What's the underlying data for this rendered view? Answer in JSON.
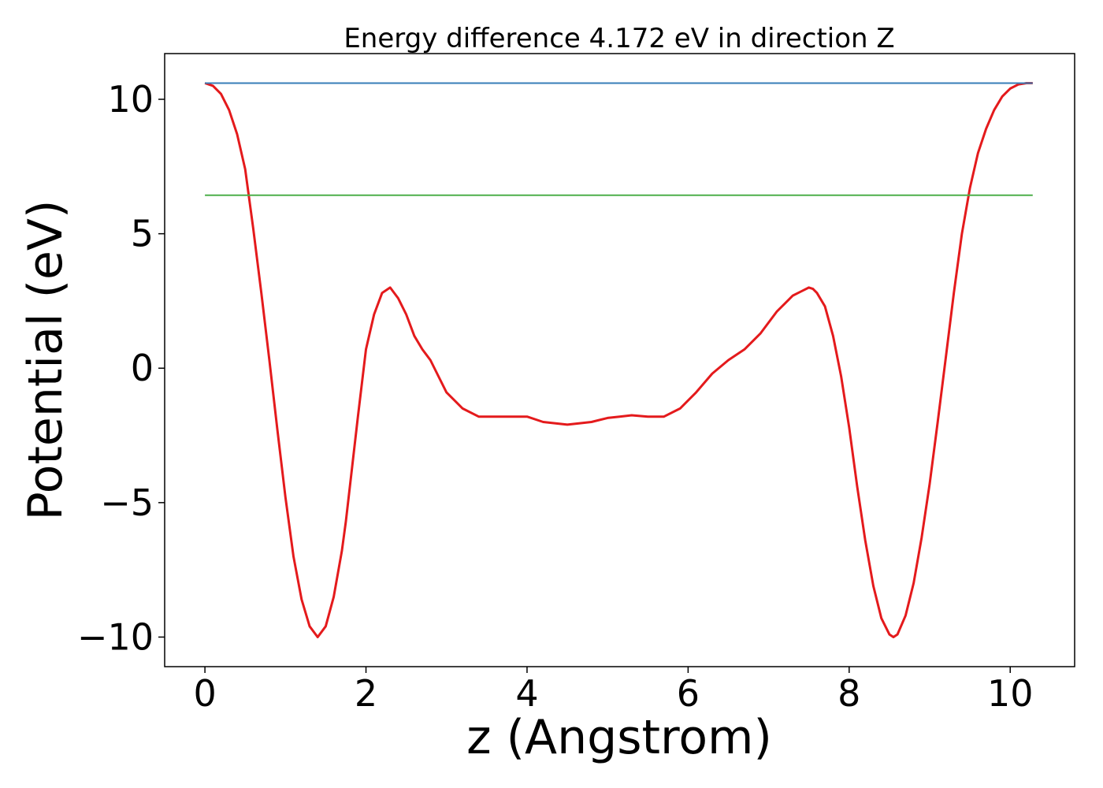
{
  "chart_data": {
    "type": "line",
    "title": "Energy difference 4.172 eV in direction Z",
    "xlabel": "z (Angstrom)",
    "ylabel": "Potential (eV)",
    "xlim": [
      -0.5,
      10.8
    ],
    "ylim": [
      -11.1,
      11.7
    ],
    "xticks": [
      0,
      2,
      4,
      6,
      8,
      10
    ],
    "yticks": [
      -10,
      -5,
      0,
      5,
      10
    ],
    "grid": false,
    "colors": {
      "potential": "#e41a1c",
      "vacuum": "#377eb8",
      "reference": "#4daf4a"
    },
    "series": [
      {
        "style": "curve",
        "color": "#e41a1c",
        "x": [
          0,
          0.1,
          0.2,
          0.3,
          0.4,
          0.5,
          0.6,
          0.7,
          0.8,
          0.9,
          1.0,
          1.1,
          1.2,
          1.3,
          1.4,
          1.5,
          1.6,
          1.7,
          1.75,
          1.8,
          1.9,
          2.0,
          2.1,
          2.2,
          2.3,
          2.4,
          2.5,
          2.6,
          2.7,
          2.75,
          2.8,
          2.9,
          3.0,
          3.2,
          3.4,
          3.6,
          3.8,
          4.0,
          4.2,
          4.5,
          4.8,
          5.0,
          5.15,
          5.3,
          5.5,
          5.7,
          5.9,
          6.1,
          6.3,
          6.5,
          6.7,
          6.9,
          7.1,
          7.3,
          7.5,
          7.55,
          7.6,
          7.7,
          7.8,
          7.9,
          8.0,
          8.1,
          8.2,
          8.3,
          8.4,
          8.5,
          8.55,
          8.6,
          8.7,
          8.8,
          8.9,
          9.0,
          9.1,
          9.2,
          9.3,
          9.4,
          9.5,
          9.6,
          9.7,
          9.8,
          9.9,
          10.0,
          10.1,
          10.2,
          10.28
        ],
        "y": [
          10.6,
          10.5,
          10.2,
          9.6,
          8.7,
          7.4,
          5.2,
          2.8,
          0.3,
          -2.3,
          -4.8,
          -7.0,
          -8.6,
          -9.6,
          -10.0,
          -9.6,
          -8.5,
          -6.8,
          -5.7,
          -4.4,
          -1.8,
          0.7,
          2.0,
          2.8,
          3.0,
          2.6,
          2.0,
          1.2,
          0.7,
          0.5,
          0.3,
          -0.3,
          -0.9,
          -1.5,
          -1.8,
          -1.8,
          -1.8,
          -1.8,
          -2.0,
          -2.1,
          -2.0,
          -1.85,
          -1.8,
          -1.75,
          -1.8,
          -1.8,
          -1.5,
          -0.9,
          -0.2,
          0.3,
          0.7,
          1.3,
          2.1,
          2.7,
          3.0,
          2.95,
          2.8,
          2.3,
          1.2,
          -0.3,
          -2.2,
          -4.4,
          -6.4,
          -8.1,
          -9.3,
          -9.9,
          -10.0,
          -9.9,
          -9.2,
          -8.0,
          -6.3,
          -4.3,
          -2.0,
          0.4,
          2.8,
          5.0,
          6.7,
          8.0,
          8.9,
          9.6,
          10.1,
          10.4,
          10.55,
          10.6,
          10.6
        ]
      },
      {
        "style": "horizontal",
        "color": "#377eb8",
        "x": [
          0,
          10.28
        ],
        "y": [
          10.6,
          10.6
        ]
      },
      {
        "style": "horizontal",
        "color": "#4daf4a",
        "x": [
          0,
          10.28
        ],
        "y": [
          6.43,
          6.43
        ]
      }
    ]
  }
}
